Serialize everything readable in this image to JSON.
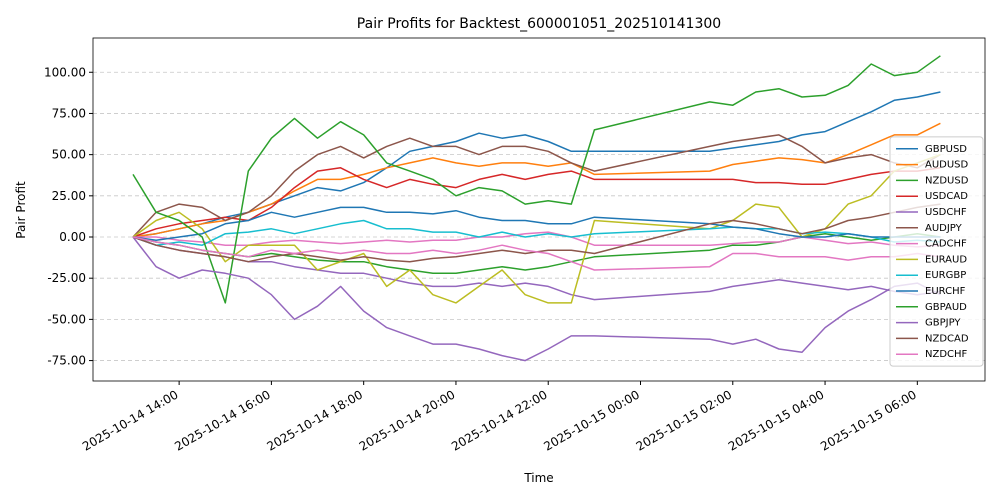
{
  "chart_data": {
    "type": "line",
    "title": "Pair Profits for Backtest_600001051_202510141300",
    "xlabel": "Time",
    "ylabel": "Pair Profit",
    "x": [
      "2025-10-14 13:00",
      "2025-10-14 13:30",
      "2025-10-14 14:00",
      "2025-10-14 14:30",
      "2025-10-14 15:00",
      "2025-10-14 15:30",
      "2025-10-14 16:00",
      "2025-10-14 16:30",
      "2025-10-14 17:00",
      "2025-10-14 17:30",
      "2025-10-14 18:00",
      "2025-10-14 18:30",
      "2025-10-14 19:00",
      "2025-10-14 19:30",
      "2025-10-14 20:00",
      "2025-10-14 20:30",
      "2025-10-14 21:00",
      "2025-10-14 21:30",
      "2025-10-14 22:00",
      "2025-10-14 22:30",
      "2025-10-14 23:00",
      "2025-10-15 01:30",
      "2025-10-15 02:00",
      "2025-10-15 02:30",
      "2025-10-15 03:00",
      "2025-10-15 03:30",
      "2025-10-15 04:00",
      "2025-10-15 04:30",
      "2025-10-15 05:00",
      "2025-10-15 05:30",
      "2025-10-15 06:00",
      "2025-10-15 06:30"
    ],
    "xlim": [
      "2025-10-14 12:08",
      "2025-10-15 07:28"
    ],
    "xticks": [
      "2025-10-14 14:00",
      "2025-10-14 16:00",
      "2025-10-14 18:00",
      "2025-10-14 20:00",
      "2025-10-14 22:00",
      "2025-10-15 00:00",
      "2025-10-15 02:00",
      "2025-10-15 04:00",
      "2025-10-15 06:00"
    ],
    "ylim": [
      -87.4,
      120.8
    ],
    "yticks": [
      {
        "value": -75,
        "label": "-75.00"
      },
      {
        "value": -50,
        "label": "-50.00"
      },
      {
        "value": -25,
        "label": "-25.00"
      },
      {
        "value": 0,
        "label": "0.00"
      },
      {
        "value": 25,
        "label": "25.00"
      },
      {
        "value": 50,
        "label": "50.00"
      },
      {
        "value": 75,
        "label": "75.00"
      },
      {
        "value": 100,
        "label": "100.00"
      }
    ],
    "grid": true,
    "legend": "center right",
    "series": [
      {
        "name": "GBPUSD",
        "color": "#1f77b4",
        "values": [
          0,
          2,
          5,
          8,
          12,
          15,
          20,
          25,
          30,
          28,
          33,
          42,
          52,
          55,
          58,
          63,
          60,
          62,
          58,
          52,
          52,
          52,
          54,
          56,
          58,
          62,
          64,
          70,
          76,
          83,
          85,
          88
        ]
      },
      {
        "name": "AUDUSD",
        "color": "#ff7f0e",
        "values": [
          0,
          2,
          5,
          8,
          10,
          15,
          20,
          28,
          35,
          35,
          38,
          42,
          45,
          48,
          45,
          43,
          45,
          45,
          43,
          45,
          38,
          40,
          44,
          46,
          48,
          47,
          45,
          50,
          56,
          62,
          62,
          69
        ]
      },
      {
        "name": "NZDUSD",
        "color": "#2ca02c",
        "values": [
          0,
          -3,
          -5,
          -8,
          -10,
          -12,
          -10,
          -12,
          -14,
          -15,
          -15,
          -18,
          -20,
          -22,
          -22,
          -20,
          -18,
          -20,
          -18,
          -15,
          -12,
          -8,
          -5,
          -5,
          -3,
          0,
          2,
          0,
          -2,
          0,
          2,
          0
        ]
      },
      {
        "name": "USDCAD",
        "color": "#d62728",
        "values": [
          0,
          5,
          8,
          10,
          12,
          10,
          18,
          30,
          40,
          42,
          35,
          30,
          35,
          32,
          30,
          35,
          38,
          35,
          38,
          40,
          35,
          35,
          35,
          33,
          33,
          32,
          32,
          35,
          38,
          40,
          40,
          42
        ]
      },
      {
        "name": "USDCHF",
        "color": "#9467bd",
        "values": [
          0,
          -5,
          -8,
          -10,
          -12,
          -15,
          -15,
          -18,
          -20,
          -22,
          -22,
          -25,
          -28,
          -30,
          -30,
          -28,
          -30,
          -28,
          -30,
          -35,
          -38,
          -33,
          -30,
          -28,
          -26,
          -28,
          -30,
          -32,
          -30,
          -33,
          -35,
          -33
        ]
      },
      {
        "name": "AUDJPY",
        "color": "#8c564b",
        "values": [
          0,
          15,
          20,
          18,
          10,
          15,
          25,
          40,
          50,
          55,
          48,
          55,
          60,
          55,
          55,
          50,
          55,
          55,
          52,
          45,
          40,
          55,
          58,
          60,
          62,
          55,
          45,
          48,
          50,
          45,
          42,
          50
        ]
      },
      {
        "name": "CADCHF",
        "color": "#e377c2",
        "values": [
          0,
          0,
          -2,
          -3,
          -5,
          -5,
          -3,
          -2,
          -3,
          -4,
          -3,
          -2,
          -3,
          -2,
          -2,
          0,
          0,
          2,
          3,
          0,
          -5,
          -5,
          -4,
          -3,
          -3,
          0,
          -2,
          -4,
          -3,
          -5,
          -6,
          -5
        ]
      },
      {
        "name": "EURAUD",
        "color": "#bcbd22",
        "values": [
          0,
          10,
          15,
          5,
          -15,
          -5,
          -5,
          -5,
          -20,
          -15,
          -10,
          -30,
          -20,
          -35,
          -40,
          -30,
          -20,
          -35,
          -40,
          -40,
          10,
          5,
          10,
          20,
          18,
          0,
          5,
          20,
          25,
          40,
          45,
          50
        ]
      },
      {
        "name": "EURGBP",
        "color": "#17becf",
        "values": [
          0,
          -5,
          -3,
          -5,
          2,
          3,
          5,
          2,
          5,
          8,
          10,
          5,
          5,
          3,
          3,
          0,
          3,
          0,
          2,
          0,
          2,
          5,
          6,
          5,
          5,
          2,
          3,
          2,
          0,
          -3,
          -2,
          -3
        ]
      },
      {
        "name": "EURCHF",
        "color": "#1f77b4",
        "values": [
          0,
          -2,
          0,
          2,
          8,
          10,
          15,
          12,
          15,
          18,
          18,
          15,
          15,
          14,
          16,
          12,
          10,
          10,
          8,
          8,
          12,
          8,
          6,
          5,
          2,
          0,
          0,
          2,
          0,
          0,
          0,
          0
        ]
      },
      {
        "name": "GBPAUD",
        "color": "#2ca02c",
        "values": [
          38,
          15,
          10,
          0,
          -40,
          40,
          60,
          72,
          60,
          70,
          62,
          45,
          40,
          35,
          25,
          30,
          28,
          20,
          22,
          20,
          65,
          82,
          80,
          88,
          90,
          85,
          86,
          92,
          105,
          98,
          100,
          110
        ]
      },
      {
        "name": "GBPJPY",
        "color": "#9467bd",
        "values": [
          0,
          -18,
          -25,
          -20,
          -22,
          -25,
          -35,
          -50,
          -42,
          -30,
          -45,
          -55,
          -60,
          -65,
          -65,
          -68,
          -72,
          -75,
          -68,
          -60,
          -60,
          -62,
          -65,
          -62,
          -68,
          -70,
          -55,
          -45,
          -38,
          -30,
          -28,
          -35
        ]
      },
      {
        "name": "NZDCAD",
        "color": "#8c564b",
        "values": [
          0,
          -5,
          -8,
          -10,
          -12,
          -15,
          -12,
          -10,
          -12,
          -14,
          -12,
          -14,
          -15,
          -13,
          -12,
          -10,
          -8,
          -10,
          -8,
          -8,
          -10,
          8,
          10,
          8,
          5,
          2,
          5,
          10,
          12,
          15,
          18,
          20
        ]
      },
      {
        "name": "NZDCHF",
        "color": "#e377c2",
        "values": [
          0,
          -3,
          -5,
          -8,
          -10,
          -12,
          -8,
          -10,
          -8,
          -10,
          -8,
          -10,
          -10,
          -8,
          -10,
          -8,
          -5,
          -8,
          -10,
          -15,
          -20,
          -18,
          -10,
          -10,
          -12,
          -12,
          -12,
          -14,
          -12,
          -12,
          -10,
          -12
        ]
      }
    ]
  }
}
